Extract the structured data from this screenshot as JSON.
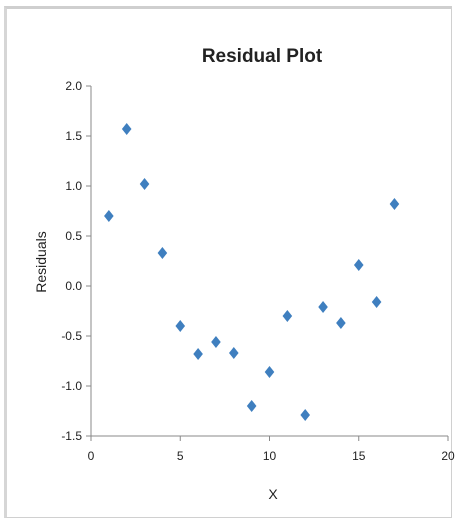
{
  "chart_data": {
    "type": "scatter",
    "title": "Residual Plot",
    "xlabel": "X",
    "ylabel": "Residuals",
    "xlim": [
      0,
      20
    ],
    "ylim": [
      -1.5,
      2.0
    ],
    "xticks": [
      0,
      5,
      10,
      15,
      20
    ],
    "xtick_labels": [
      "0",
      "5",
      "10",
      "15",
      "20"
    ],
    "yticks": [
      2.0,
      1.5,
      1.0,
      0.5,
      0.0,
      -0.5,
      -1.0,
      -1.5
    ],
    "ytick_labels": [
      "2.0",
      "1.5",
      "1.0",
      "0.5",
      "0.0",
      "-0.5",
      "-1.0",
      "-1.5"
    ],
    "grid": false,
    "legend": "none",
    "marker": "diamond",
    "marker_color": "#3f7fbf",
    "points": [
      {
        "x": 1,
        "y": 0.7
      },
      {
        "x": 2,
        "y": 1.57
      },
      {
        "x": 3,
        "y": 1.02
      },
      {
        "x": 4,
        "y": 0.33
      },
      {
        "x": 5,
        "y": -0.4
      },
      {
        "x": 6,
        "y": -0.68
      },
      {
        "x": 7,
        "y": -0.56
      },
      {
        "x": 8,
        "y": -0.67
      },
      {
        "x": 9,
        "y": -1.2
      },
      {
        "x": 10,
        "y": -0.86
      },
      {
        "x": 11,
        "y": -0.3
      },
      {
        "x": 12,
        "y": -1.29
      },
      {
        "x": 13,
        "y": -0.21
      },
      {
        "x": 14,
        "y": -0.37
      },
      {
        "x": 15,
        "y": 0.21
      },
      {
        "x": 16,
        "y": -0.16
      },
      {
        "x": 17,
        "y": 0.82
      }
    ]
  }
}
